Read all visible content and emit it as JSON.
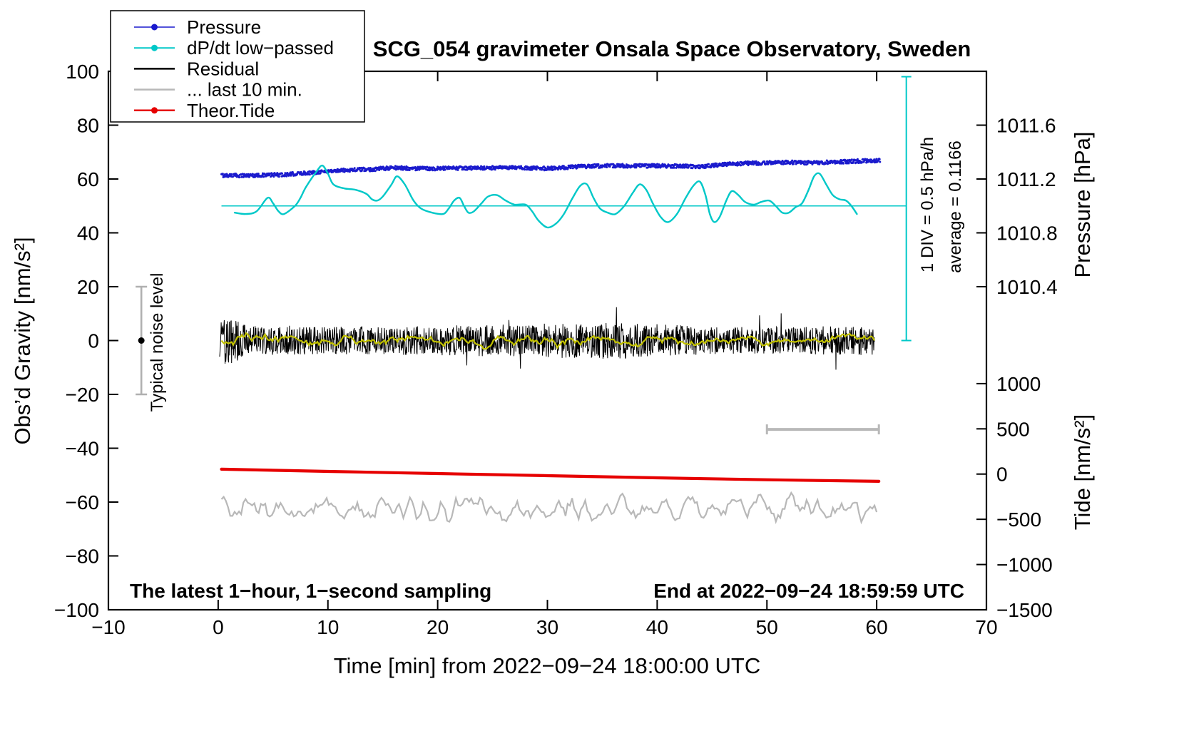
{
  "annotations": {
    "noise_label": "Typical noise level",
    "div_label": "1 DIV = 0.5 hPa/h",
    "avg_label": "average = 0.1166",
    "footer_left": "The latest 1−hour, 1−second sampling",
    "footer_right": "End at 2022−09−24 18:59:59 UTC"
  },
  "legend": {
    "items": [
      {
        "label": "Pressure",
        "color": "#1a1acd",
        "marker": "dot-line",
        "line_width": 1.5
      },
      {
        "label": "dP/dt low−passed",
        "color": "#00c8c8",
        "marker": "dot-line",
        "line_width": 2
      },
      {
        "label": "Residual",
        "color": "#000000",
        "marker": "line",
        "line_width": 2.5
      },
      {
        "label": "... last 10 min.",
        "color": "#b8b8b8",
        "marker": "line",
        "line_width": 2.5
      },
      {
        "label": "Theor.Tide",
        "color": "#e60000",
        "marker": "dot-line",
        "line_width": 2.5
      }
    ]
  },
  "axes": {
    "x": {
      "label": "Time [min] from 2022−09−24 18:00:00 UTC",
      "min": -10,
      "max": 70,
      "ticks": [
        {
          "v": -10,
          "label": "−10"
        },
        {
          "v": 0,
          "label": "0"
        },
        {
          "v": 10,
          "label": "10"
        },
        {
          "v": 20,
          "label": "20"
        },
        {
          "v": 30,
          "label": "30"
        },
        {
          "v": 40,
          "label": "40"
        },
        {
          "v": 50,
          "label": "50"
        },
        {
          "v": 60,
          "label": "60"
        },
        {
          "v": 70,
          "label": "70"
        }
      ]
    },
    "y_left": {
      "label": "Obs’d Gravity [nm/s²]",
      "min": -100,
      "max": 100,
      "ticks": [
        {
          "v": -100,
          "label": "−100"
        },
        {
          "v": -80,
          "label": "−80"
        },
        {
          "v": -60,
          "label": "−60"
        },
        {
          "v": -40,
          "label": "−40"
        },
        {
          "v": -20,
          "label": "−20"
        },
        {
          "v": 0,
          "label": "0"
        },
        {
          "v": 20,
          "label": "20"
        },
        {
          "v": 40,
          "label": "40"
        },
        {
          "v": 60,
          "label": "60"
        },
        {
          "v": 80,
          "label": "80"
        },
        {
          "v": 100,
          "label": "100"
        }
      ]
    },
    "y_right_pressure": {
      "label": "Pressure [hPa]",
      "ticks": [
        {
          "v": 80,
          "label": "1011.6"
        },
        {
          "v": 60,
          "label": "1011.2"
        },
        {
          "v": 40,
          "label": "1010.8"
        },
        {
          "v": 20,
          "label": "1010.4"
        }
      ]
    },
    "y_right_tide": {
      "label": "Tide [nm/s²]",
      "ticks": [
        {
          "v": -16,
          "label": "1000"
        },
        {
          "v": -32.8,
          "label": "500"
        },
        {
          "v": -49.6,
          "label": "0"
        },
        {
          "v": -66.4,
          "label": "−500"
        },
        {
          "v": -83.2,
          "label": "−1000"
        },
        {
          "v": -100,
          "label": "−1500"
        }
      ]
    }
  },
  "chart_data": {
    "type": "line",
    "title": "SCG_054 gravimeter Onsala Space Observatory, Sweden",
    "xlabel": "Time [min] from 2022−09−24 18:00:00 UTC",
    "ylabel": "Obs’d Gravity [nm/s²]",
    "x_range": [
      -10,
      70
    ],
    "y_left_range": [
      -100,
      100
    ],
    "pressure_axis_map": {
      "gravity_0_hpa": 1010.0,
      "hpa_per_gravity_unit": 0.02
    },
    "tide_axis_map": {
      "tide_range": [
        -1500,
        1000
      ],
      "gravity_range": [
        -100,
        -16
      ]
    },
    "series": [
      {
        "name": "pressure",
        "axis": "pressure-hpa",
        "style": "dots",
        "color": "#1a1acd",
        "n": 1500,
        "noise_amp": 0.7,
        "x_span": [
          0.3,
          60.3
        ],
        "control": [
          [
            0,
            61.4
          ],
          [
            2,
            61.3
          ],
          [
            4,
            61.4
          ],
          [
            6,
            61.6
          ],
          [
            8,
            62.2
          ],
          [
            10,
            62.9
          ],
          [
            12,
            63.4
          ],
          [
            14,
            63.6
          ],
          [
            16,
            64.2
          ],
          [
            18,
            63.9
          ],
          [
            20,
            63.9
          ],
          [
            22,
            64.0
          ],
          [
            24,
            64.1
          ],
          [
            26,
            64.2
          ],
          [
            28,
            64.1
          ],
          [
            30,
            63.9
          ],
          [
            32,
            64.4
          ],
          [
            34,
            64.8
          ],
          [
            36,
            64.9
          ],
          [
            38,
            64.9
          ],
          [
            40,
            64.9
          ],
          [
            42,
            64.8
          ],
          [
            44,
            64.6
          ],
          [
            46,
            65.4
          ],
          [
            48,
            65.8
          ],
          [
            50,
            66.0
          ],
          [
            52,
            66.2
          ],
          [
            54,
            66.0
          ],
          [
            56,
            66.3
          ],
          [
            58,
            66.6
          ],
          [
            60,
            66.9
          ]
        ]
      },
      {
        "name": "dpdt-low-passed",
        "style": "smooth",
        "color": "#00c8c8",
        "width": 2.4,
        "control": [
          [
            1.5,
            47.5
          ],
          [
            2.5,
            47
          ],
          [
            3.5,
            48
          ],
          [
            4.5,
            53
          ],
          [
            5,
            51
          ],
          [
            5.5,
            48
          ],
          [
            6,
            47
          ],
          [
            7,
            50
          ],
          [
            7.5,
            53
          ],
          [
            8,
            57
          ],
          [
            9,
            63
          ],
          [
            9.5,
            65
          ],
          [
            10,
            62
          ],
          [
            10.5,
            58
          ],
          [
            11.5,
            56.5
          ],
          [
            12.5,
            56
          ],
          [
            13.5,
            54.5
          ],
          [
            14,
            52.5
          ],
          [
            14.5,
            52
          ],
          [
            15,
            53.5
          ],
          [
            15.8,
            58
          ],
          [
            16.3,
            61
          ],
          [
            17,
            58
          ],
          [
            17.8,
            52
          ],
          [
            18.5,
            49
          ],
          [
            19.5,
            47.5
          ],
          [
            20.5,
            47
          ],
          [
            21,
            49
          ],
          [
            21.5,
            52
          ],
          [
            22,
            53
          ],
          [
            22.4,
            50
          ],
          [
            22.8,
            47.5
          ],
          [
            23.3,
            48
          ],
          [
            24,
            51
          ],
          [
            24.6,
            53.5
          ],
          [
            25.4,
            54
          ],
          [
            26.2,
            52
          ],
          [
            27,
            50.5
          ],
          [
            28,
            50.5
          ],
          [
            28.6,
            48
          ],
          [
            29.2,
            44.5
          ],
          [
            30,
            42
          ],
          [
            30.8,
            43.5
          ],
          [
            31.5,
            47
          ],
          [
            32.3,
            53
          ],
          [
            33,
            57.5
          ],
          [
            33.6,
            58
          ],
          [
            34.2,
            53
          ],
          [
            34.8,
            49
          ],
          [
            35.5,
            47.5
          ],
          [
            36.2,
            47
          ],
          [
            37,
            50
          ],
          [
            37.8,
            55
          ],
          [
            38.4,
            58
          ],
          [
            39,
            56
          ],
          [
            39.6,
            51
          ],
          [
            40.3,
            46
          ],
          [
            41,
            44
          ],
          [
            41.8,
            47
          ],
          [
            42.6,
            53
          ],
          [
            43.3,
            57.5
          ],
          [
            43.9,
            59
          ],
          [
            44.4,
            54
          ],
          [
            44.8,
            47
          ],
          [
            45.2,
            44
          ],
          [
            45.7,
            46
          ],
          [
            46.3,
            52
          ],
          [
            46.8,
            55.5
          ],
          [
            47.4,
            54
          ],
          [
            48,
            51.5
          ],
          [
            48.8,
            50.5
          ],
          [
            49.5,
            51.5
          ],
          [
            50.2,
            52
          ],
          [
            50.8,
            50
          ],
          [
            51.4,
            47.5
          ],
          [
            52,
            47.5
          ],
          [
            52.6,
            49.5
          ],
          [
            53.2,
            51
          ],
          [
            53.8,
            56
          ],
          [
            54.3,
            61
          ],
          [
            54.8,
            62
          ],
          [
            55.4,
            58
          ],
          [
            56,
            54
          ],
          [
            56.6,
            52.5
          ],
          [
            57.2,
            52
          ],
          [
            57.7,
            50
          ],
          [
            58.2,
            47
          ]
        ]
      },
      {
        "name": "residual",
        "style": "noisy",
        "color": "#000000",
        "width": 1,
        "n": 1700,
        "x_span": [
          0.1,
          59.8
        ],
        "baseline": [
          [
            0,
            0
          ],
          [
            60,
            0
          ]
        ],
        "spike_prob": 0.012,
        "spike_scale": 2.1,
        "amp_env": [
          [
            0,
            6
          ],
          [
            0.8,
            11
          ],
          [
            1.5,
            8
          ],
          [
            3,
            5.5
          ],
          [
            10,
            5
          ],
          [
            20,
            5.5
          ],
          [
            27,
            6
          ],
          [
            36,
            7
          ],
          [
            45,
            5
          ],
          [
            60,
            5.5
          ]
        ]
      },
      {
        "name": "residual-low-passed",
        "style": "smoothed-noise",
        "color": "#c2c200",
        "width": 2.2,
        "n": 450,
        "x_span": [
          0.3,
          59.8
        ],
        "baseline": [
          [
            0,
            0
          ],
          [
            60,
            0
          ]
        ],
        "raw_amp": 6,
        "smooth_window": 4
      },
      {
        "name": "residual-last-10-min",
        "style": "smoothed-noise",
        "color": "#b8b8b8",
        "width": 2.2,
        "n": 300,
        "x_span": [
          0.3,
          60
        ],
        "baseline": [
          [
            0,
            -62.5
          ],
          [
            60,
            -62.5
          ]
        ],
        "raw_amp": 7,
        "smooth_window": 1
      },
      {
        "name": "theor-tide",
        "axis": "tide",
        "style": "smooth",
        "color": "#e60000",
        "width": 4.2,
        "control": [
          [
            0.3,
            -47.8
          ],
          [
            10,
            -48.6
          ],
          [
            20,
            -49.4
          ],
          [
            30,
            -50.2
          ],
          [
            40,
            -51.0
          ],
          [
            50,
            -51.7
          ],
          [
            60.2,
            -52.3
          ]
        ]
      }
    ],
    "markers": {
      "dpdt_zero_line": {
        "y": 50,
        "x_span": [
          0.3,
          62.7
        ],
        "color": "#00c8c8"
      },
      "div_bar": {
        "x": 62.7,
        "g_span": [
          0,
          98
        ],
        "color": "#00c8c8"
      },
      "noise_errorbar": {
        "x": -7,
        "g_span": [
          -20,
          20
        ],
        "color": "#b0b0b0",
        "dot_color": "#000000",
        "dot_g": 0
      },
      "last10_bar": {
        "g": -33,
        "x_span": [
          50,
          60.2
        ],
        "color": "#b8b8b8"
      }
    }
  }
}
